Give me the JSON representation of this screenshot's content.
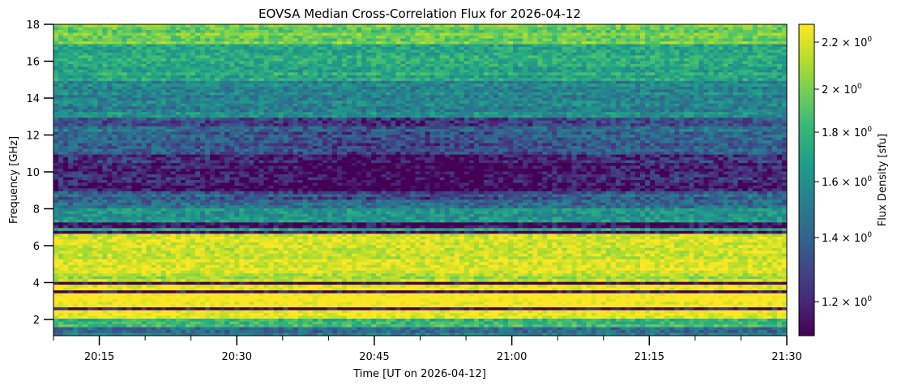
{
  "chart_data": {
    "type": "heatmap",
    "title": "EOVSA Median Cross-Correlation Flux for 2026-04-12",
    "xlabel": "Time [UT on 2026-04-12]",
    "ylabel": "Frequency [GHz]",
    "x_range_minutes_since_2000UT": [
      10,
      90
    ],
    "x_ticks": [
      {
        "minute": 15,
        "label": "20:15"
      },
      {
        "minute": 30,
        "label": "20:30"
      },
      {
        "minute": 45,
        "label": "20:45"
      },
      {
        "minute": 60,
        "label": "21:00"
      },
      {
        "minute": 75,
        "label": "21:15"
      },
      {
        "minute": 90,
        "label": "21:30"
      }
    ],
    "x_minor_tick_step_minutes": 5,
    "y_range": [
      1.12,
      18
    ],
    "y_ticks": [
      {
        "value": 2,
        "label": "2"
      },
      {
        "value": 4,
        "label": "4"
      },
      {
        "value": 6,
        "label": "6"
      },
      {
        "value": 8,
        "label": "8"
      },
      {
        "value": 10,
        "label": "10"
      },
      {
        "value": 12,
        "label": "12"
      },
      {
        "value": 14,
        "label": "14"
      },
      {
        "value": 16,
        "label": "16"
      },
      {
        "value": 18,
        "label": "18"
      }
    ],
    "colorbar": {
      "label": "Flux Density [sfu]",
      "scale": "log",
      "range": [
        1.1,
        2.3
      ],
      "ticks": [
        {
          "value": 1.2,
          "label": "1.2 × 10",
          "exp": "0"
        },
        {
          "value": 1.4,
          "label": "1.4 × 10",
          "exp": "0"
        },
        {
          "value": 1.6,
          "label": "1.6 × 10",
          "exp": "0"
        },
        {
          "value": 1.8,
          "label": "1.8 × 10",
          "exp": "0"
        },
        {
          "value": 2.0,
          "label": "2 × 10",
          "exp": "0"
        },
        {
          "value": 2.2,
          "label": "2.2 × 10",
          "exp": "0"
        }
      ],
      "colormap": [
        "#440154",
        "#482878",
        "#3e4989",
        "#31688e",
        "#26828e",
        "#1f9e89",
        "#35b779",
        "#6ece58",
        "#b5de2b",
        "#fde725"
      ]
    },
    "frequency_profile_sfu": [
      {
        "f": [
          17.0,
          18.0
        ],
        "flux": 1.95
      },
      {
        "f": [
          15.0,
          17.0
        ],
        "flux": 1.72
      },
      {
        "f": [
          13.0,
          15.0
        ],
        "flux": 1.55
      },
      {
        "f": [
          12.5,
          13.0
        ],
        "flux": 1.3
      },
      {
        "f": [
          11.0,
          12.5
        ],
        "flux": 1.42
      },
      {
        "f": [
          9.0,
          11.0
        ],
        "flux": 1.2
      },
      {
        "f": [
          8.0,
          9.0
        ],
        "flux": 1.4
      },
      {
        "f": [
          7.2,
          8.0
        ],
        "flux": 1.62
      },
      {
        "f": [
          6.95,
          7.2
        ],
        "flux": 1.12
      },
      {
        "f": [
          6.8,
          6.95
        ],
        "flux": 1.7
      },
      {
        "f": [
          6.7,
          6.8
        ],
        "flux": 1.12
      },
      {
        "f": [
          4.5,
          6.7
        ],
        "flux": 2.2
      },
      {
        "f": [
          4.0,
          4.5
        ],
        "flux": 2.1
      },
      {
        "f": [
          3.85,
          4.0
        ],
        "flux": 1.12
      },
      {
        "f": [
          3.6,
          3.85
        ],
        "flux": 2.3
      },
      {
        "f": [
          3.45,
          3.6
        ],
        "flux": 1.12
      },
      {
        "f": [
          2.7,
          3.45
        ],
        "flux": 2.3
      },
      {
        "f": [
          2.55,
          2.7
        ],
        "flux": 1.15
      },
      {
        "f": [
          2.0,
          2.55
        ],
        "flux": 2.25
      },
      {
        "f": [
          1.6,
          2.0
        ],
        "flux": 1.8
      },
      {
        "f": [
          1.12,
          1.6
        ],
        "flux": 1.45
      }
    ],
    "mid_band_dip": {
      "f": [
        8.5,
        13.0
      ],
      "center_minute": 47,
      "depth_sfu": 0.12
    }
  }
}
